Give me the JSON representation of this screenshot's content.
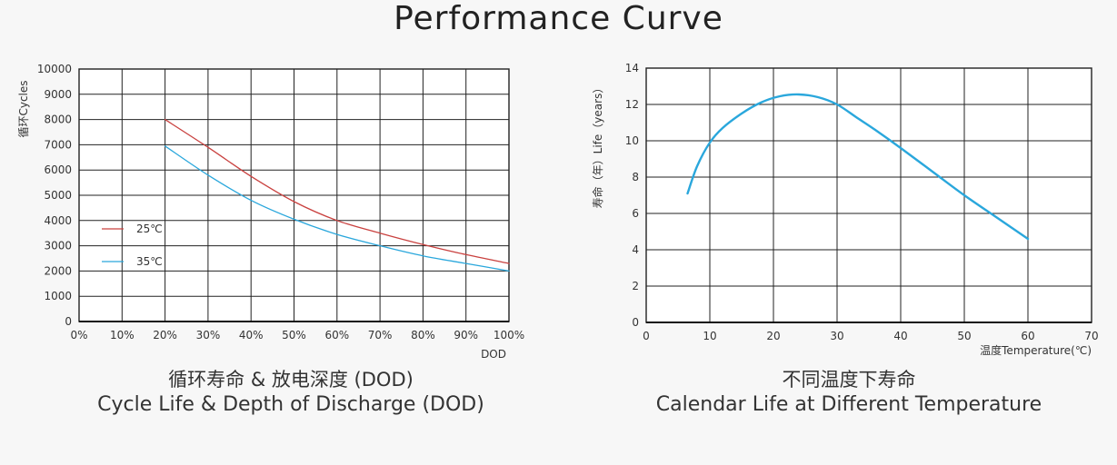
{
  "page": {
    "title": "Performance Curve"
  },
  "chart_data": [
    {
      "type": "line",
      "title_cn": "循环寿命 & 放电深度 (DOD)",
      "title": "Cycle Life & Depth of Discharge (DOD)",
      "xlabel": "DOD",
      "ylabel": "循环Cycles",
      "xlim": [
        0,
        100
      ],
      "ylim": [
        0,
        10000
      ],
      "xticks": [
        "0%",
        "10%",
        "20%",
        "30%",
        "40%",
        "50%",
        "60%",
        "70%",
        "80%",
        "90%",
        "100%"
      ],
      "yticks": [
        "0",
        "1000",
        "2000",
        "3000",
        "4000",
        "5000",
        "6000",
        "7000",
        "8000",
        "9000",
        "10000"
      ],
      "grid": true,
      "legend_position": "middle-left",
      "series": [
        {
          "name": "25℃",
          "color": "#c9413f",
          "x": [
            20,
            30,
            40,
            50,
            60,
            70,
            80,
            90,
            100
          ],
          "y": [
            8000,
            6900,
            5750,
            4750,
            4000,
            3500,
            3050,
            2650,
            2300
          ]
        },
        {
          "name": "35℃",
          "color": "#2aa7dc",
          "x": [
            20,
            30,
            40,
            50,
            60,
            70,
            80,
            90,
            100
          ],
          "y": [
            6950,
            5800,
            4800,
            4050,
            3450,
            3000,
            2600,
            2300,
            2000
          ]
        }
      ]
    },
    {
      "type": "line",
      "title_cn": "不同温度下寿命",
      "title": "Calendar Life at Different Temperature",
      "xlabel": "温度Temperature(℃)",
      "ylabel": "寿命（年）Life（years）",
      "xlim": [
        0,
        70
      ],
      "ylim": [
        0,
        14
      ],
      "xticks": [
        "0",
        "10",
        "20",
        "30",
        "40",
        "50",
        "60",
        "70"
      ],
      "yticks": [
        "0",
        "2",
        "4",
        "6",
        "8",
        "10",
        "12",
        "14"
      ],
      "grid": true,
      "series": [
        {
          "color": "#2aa7dc",
          "x": [
            6.5,
            8,
            10,
            12,
            15,
            18,
            21,
            24,
            27,
            30,
            33,
            36,
            40,
            45,
            50,
            55,
            60
          ],
          "y": [
            7.1,
            8.6,
            9.9,
            10.7,
            11.5,
            12.1,
            12.45,
            12.55,
            12.4,
            12.0,
            11.3,
            10.6,
            9.6,
            8.3,
            7.0,
            5.8,
            4.6
          ]
        }
      ]
    }
  ]
}
